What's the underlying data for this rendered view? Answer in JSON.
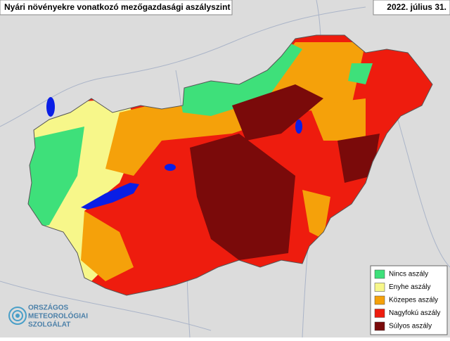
{
  "header": {
    "title": "Nyári növényekre vonatkozó mezőgazdasági aszályszint",
    "date": "2022. július 31."
  },
  "legend": {
    "items": [
      {
        "label": "Nincs aszály",
        "color": "#3ee07a"
      },
      {
        "label": "Enyhe aszály",
        "color": "#f7f78a"
      },
      {
        "label": "Közepes aszály",
        "color": "#f5a10a"
      },
      {
        "label": "Nagyfokú aszály",
        "color": "#ee1c0e"
      },
      {
        "label": "Súlyos aszály",
        "color": "#7a0a0a"
      }
    ]
  },
  "logo": {
    "lines": [
      "ORSZÁGOS",
      "METEOROLÓGIAI",
      "SZOLGÁLAT"
    ]
  }
}
